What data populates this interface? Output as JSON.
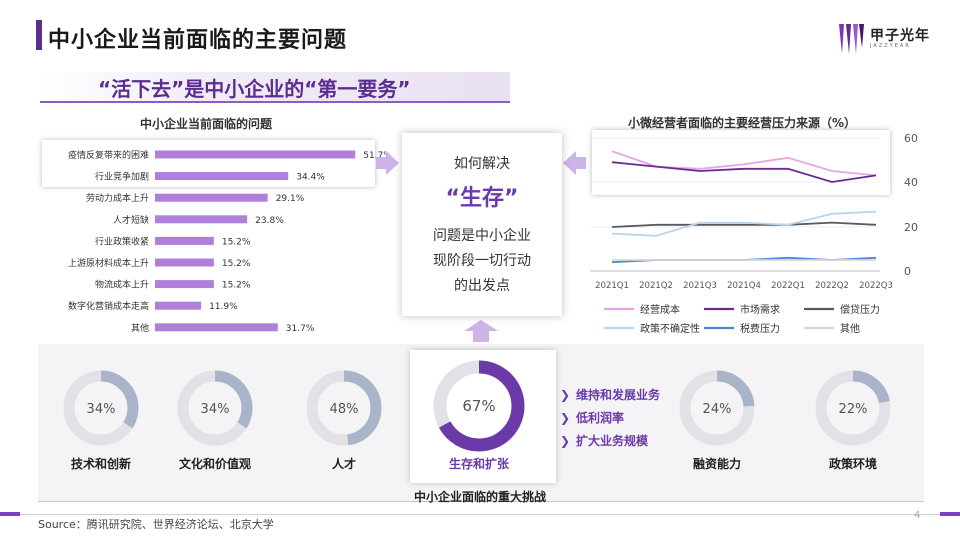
{
  "header": {
    "title": "中小企业当前面临的主要问题",
    "subtitle": "“活下去”是中小企业的“第一要务”",
    "logo_text": "甲子光年",
    "logo_sub": "JAZZYEAR"
  },
  "center_box": {
    "line1": "如何解决",
    "line2": "“生存”",
    "line3": "问题是中小企业",
    "line4": "现阶段一切行动",
    "line5": "的出发点"
  },
  "bullets": [
    "维持和发展业务",
    "低利润率",
    "扩大业务规模"
  ],
  "bottom_caption": "中小企业面临的重大挑战",
  "footer": {
    "source": "Source：腾讯研究院、世界经济论坛、北京大学",
    "page": "4"
  },
  "colors": {
    "accent": "#6b3aa8",
    "bar": "#b07fd9",
    "donut_gray": "#aab4c8",
    "donut_track": "#e2e2e6"
  },
  "chart_data": [
    {
      "type": "bar",
      "orientation": "horizontal",
      "title": "中小企业当前面临的问题",
      "categories": [
        "疫情反复带来的困难",
        "行业竞争加剧",
        "劳动力成本上升",
        "人才短缺",
        "行业政策收紧",
        "上游原材料成本上升",
        "物流成本上升",
        "数字化营销成本走高",
        "其他"
      ],
      "values": [
        51.7,
        34.4,
        29.1,
        23.8,
        15.2,
        15.2,
        15.2,
        11.9,
        31.7
      ],
      "value_labels": [
        "51.7%",
        "34.4%",
        "29.1%",
        "23.8%",
        "15.2%",
        "15.2%",
        "15.2%",
        "11.9%",
        "31.7%"
      ],
      "highlighted": [
        "疫情反复带来的困难",
        "行业竞争加剧"
      ],
      "xlim": [
        0,
        55
      ]
    },
    {
      "type": "line",
      "title": "小微经营者面临的主要经营压力来源（%）",
      "x": [
        "2021Q1",
        "2021Q2",
        "2021Q3",
        "2021Q4",
        "2022Q1",
        "2022Q2",
        "2022Q3"
      ],
      "y_upper_ticks": [
        "60",
        "40"
      ],
      "y_lower_ticks": [
        "20",
        "0"
      ],
      "y_axis_break": true,
      "grid": true,
      "legend": "bottom",
      "series": [
        {
          "name": "经营成本",
          "color": "#e7a6e0",
          "values": [
            54,
            47,
            46,
            48,
            51,
            45,
            43
          ]
        },
        {
          "name": "市场需求",
          "color": "#6a2a8f",
          "values": [
            49,
            47,
            45,
            46,
            46,
            40,
            43
          ]
        },
        {
          "name": "偿贷压力",
          "color": "#5a5a5a",
          "values": [
            20,
            21,
            21,
            21,
            21,
            22,
            21
          ]
        },
        {
          "name": "政策不确定性",
          "color": "#b9d4ee",
          "values": [
            17,
            16,
            22,
            22,
            21,
            26,
            27
          ]
        },
        {
          "name": "税费压力",
          "color": "#4a86d6",
          "values": [
            4,
            5,
            5,
            5,
            6,
            5,
            6
          ]
        },
        {
          "name": "其他",
          "color": "#d6d6d6",
          "values": [
            5,
            5,
            5,
            5,
            5,
            5,
            5
          ]
        }
      ]
    },
    {
      "type": "pie",
      "variant": "donut",
      "title": "中小企业面临的重大挑战",
      "categories": [
        "技术和创新",
        "文化和价值观",
        "人才",
        "生存和扩张",
        "融资能力",
        "政策环境"
      ],
      "values": [
        34,
        34,
        48,
        67,
        24,
        22
      ],
      "value_labels": [
        "34%",
        "34%",
        "48%",
        "67%",
        "24%",
        "22%"
      ],
      "highlighted": [
        "生存和扩张"
      ]
    }
  ]
}
